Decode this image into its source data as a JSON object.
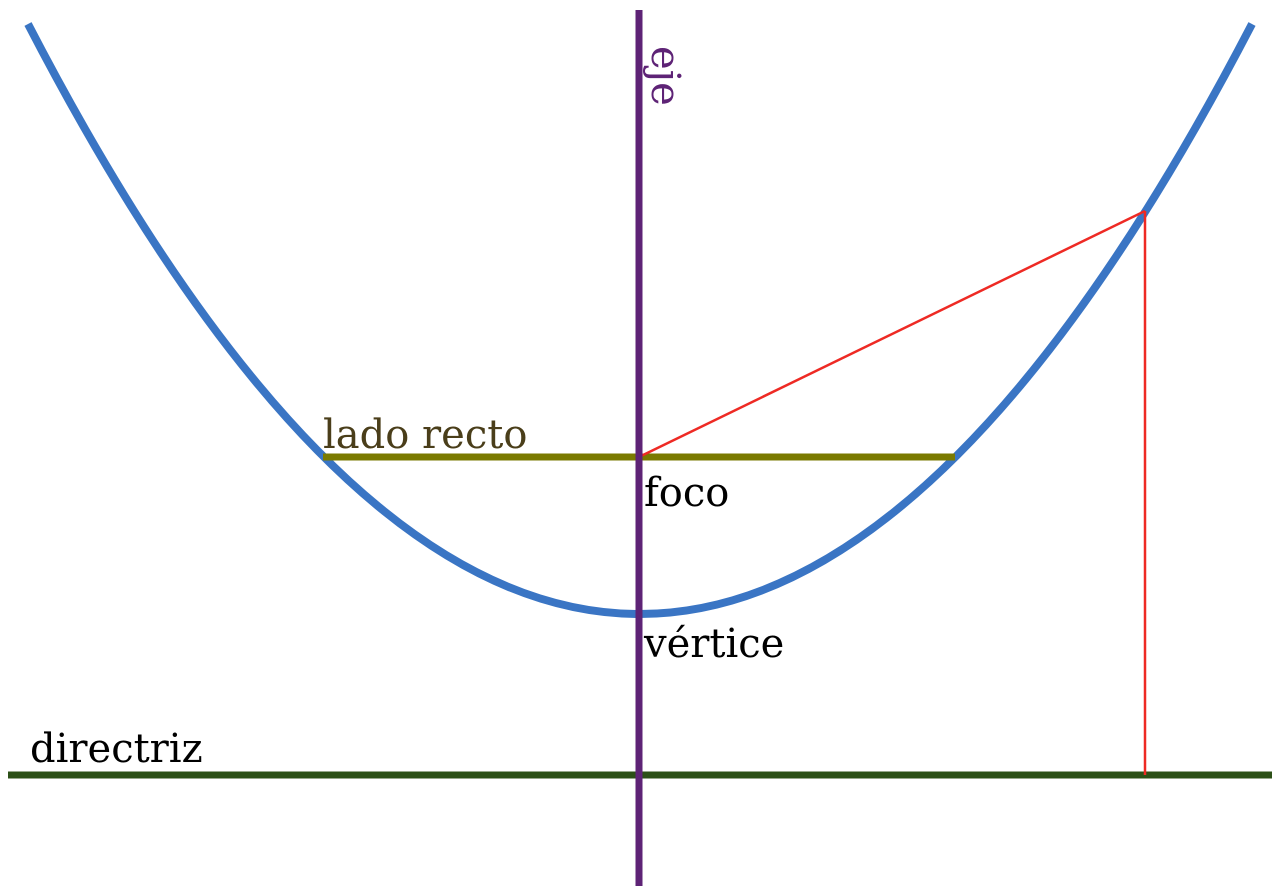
{
  "labels": {
    "axis": "eje",
    "latus_rectum": "lado recto",
    "focus": "foco",
    "vertex": "vértice",
    "directrix": "directriz"
  },
  "colors": {
    "background": "#ffffff",
    "parabola": "#3a75c4",
    "axis": "#5e2376",
    "latus_rectum": "#7a7a00",
    "latus_rectum_label": "#4a3e1a",
    "directrix": "#2c5017",
    "construction_lines": "#ee2a24",
    "text": "#000000"
  }
}
